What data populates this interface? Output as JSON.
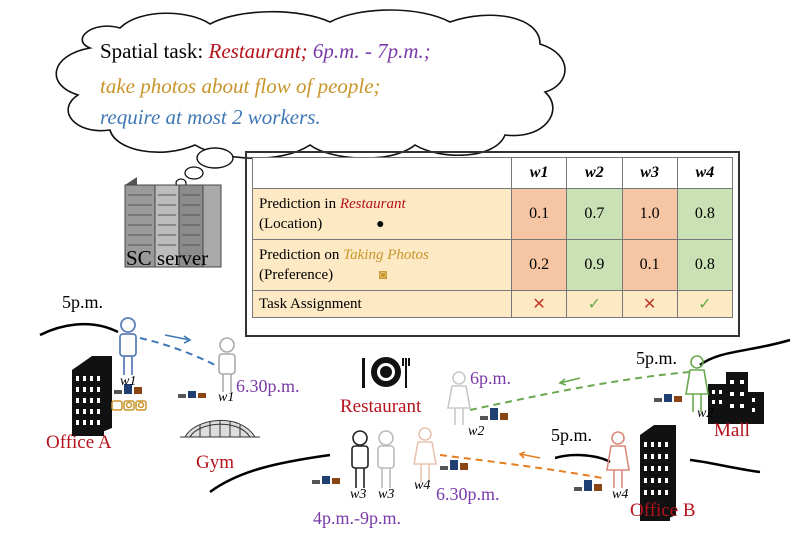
{
  "bubble": {
    "prefix": "Spatial task: ",
    "location": "Restaurant",
    "sep": ";",
    "time": " 6p.m. - 7p.m.;",
    "activity": "take photos about flow of people;",
    "requirement": "require at most 2 workers."
  },
  "server": {
    "label": "SC server"
  },
  "table": {
    "headers": [
      "w1",
      "w2",
      "w3",
      "w4"
    ],
    "rows": [
      {
        "label_prefix": "Prediction in ",
        "label_em": "Restaurant",
        "label_sub": "(Location)",
        "values": [
          "0.1",
          "0.7",
          "1.0",
          "0.8"
        ]
      },
      {
        "label_prefix": "Prediction on ",
        "label_em": "Taking Photos",
        "label_sub": "(Preference)",
        "values": [
          "0.2",
          "0.9",
          "0.1",
          "0.8"
        ]
      }
    ],
    "assignment_label": "Task Assignment",
    "assignment": [
      "✕",
      "✓",
      "✕",
      "✓"
    ]
  },
  "places": {
    "office_a": "Office A",
    "gym": "Gym",
    "restaurant": "Restaurant",
    "mall": "Mall",
    "office_b": "Office B"
  },
  "times": {
    "w1_start": "5p.m.",
    "w1_gym": "6.30p.m.",
    "w2_start": "5p.m.",
    "w2_rest": "6p.m.",
    "w4_start": "5p.m.",
    "w4_rest": "6.30p.m.",
    "w3_range": "4p.m.-9p.m."
  },
  "workers": {
    "w1": "w1",
    "w1b": "w1",
    "w2": "w2",
    "w2b": "w2",
    "w3": "w3",
    "w3b": "w3",
    "w4": "w4",
    "w4b": "w4"
  },
  "colors": {
    "red": "#b5121b",
    "purple": "#7a3aa8",
    "gold": "#c8952a",
    "blue": "#3f78b5",
    "orange": "#f6c6a4",
    "green": "#c9e1b4",
    "cream": "#fde9c3"
  }
}
